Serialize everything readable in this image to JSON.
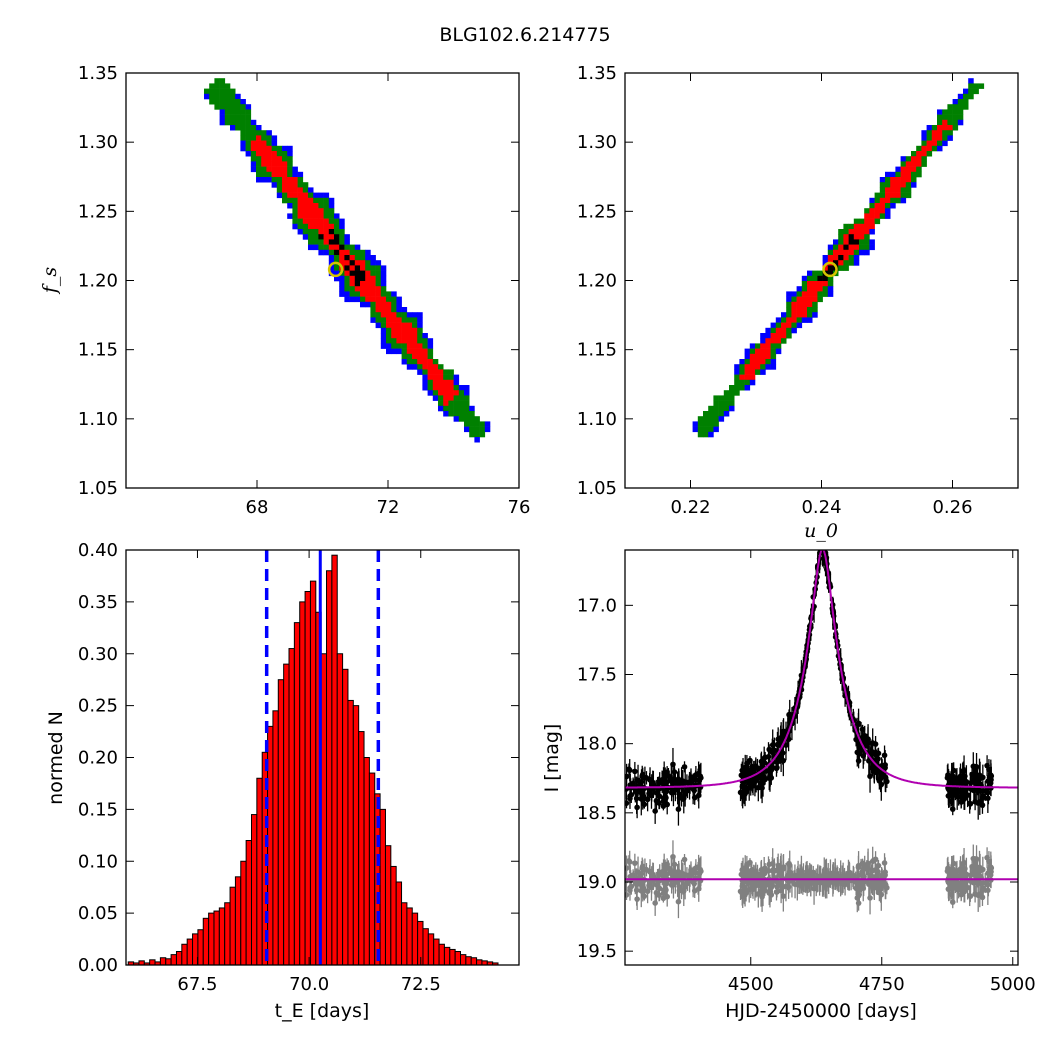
{
  "figure": {
    "title": "BLG102.6.214775"
  },
  "colors": {
    "outer": "#0000ff",
    "mid": "#008000",
    "inner": "#ff0000",
    "core": "#000000",
    "marker": "#d4c400",
    "model": "#b000b0",
    "resid": "#808080"
  },
  "chart_data": [
    {
      "type": "heatmap",
      "panel": "te-vs-fs",
      "xlabel": "",
      "ylabel": "f_s",
      "xlim": [
        64,
        76
      ],
      "ylim": [
        1.05,
        1.35
      ],
      "xticks": [
        "68",
        "72",
        "76"
      ],
      "yticks": [
        "1.05",
        "1.10",
        "1.15",
        "1.20",
        "1.25",
        "1.30",
        "1.35"
      ],
      "best_fit": [
        70.4,
        1.208
      ],
      "ridge": {
        "x0": 66.7,
        "y0": 1.34,
        "x1": 74.8,
        "y1": 1.09
      },
      "levels": [
        "outer",
        "mid",
        "inner",
        "core"
      ]
    },
    {
      "type": "heatmap",
      "panel": "u0-vs-fs",
      "xlabel": "u_0",
      "ylabel": "",
      "xlim": [
        0.21,
        0.27
      ],
      "ylim": [
        1.05,
        1.35
      ],
      "xticks": [
        "0.22",
        "0.24",
        "0.26"
      ],
      "yticks": [
        "1.05",
        "1.10",
        "1.15",
        "1.20",
        "1.25",
        "1.30",
        "1.35"
      ],
      "best_fit": [
        0.2413,
        1.208
      ],
      "ridge": {
        "x0": 0.2215,
        "y0": 1.09,
        "x1": 0.2635,
        "y1": 1.34
      },
      "levels": [
        "outer",
        "mid",
        "inner",
        "core"
      ]
    },
    {
      "type": "bar",
      "panel": "te-histogram",
      "xlabel": "t_E [days]",
      "ylabel": "normed N",
      "xlim": [
        65.9,
        74.7
      ],
      "ylim": [
        0,
        0.4
      ],
      "xticks": [
        "67.5",
        "70.0",
        "72.5"
      ],
      "yticks": [
        "0.00",
        "0.05",
        "0.10",
        "0.15",
        "0.20",
        "0.25",
        "0.30",
        "0.35",
        "0.40"
      ],
      "bin_start": 65.95,
      "bin_width": 0.12,
      "values": [
        0.003,
        0.002,
        0.004,
        0.002,
        0.005,
        0.003,
        0.007,
        0.006,
        0.01,
        0.013,
        0.02,
        0.025,
        0.03,
        0.034,
        0.045,
        0.05,
        0.052,
        0.055,
        0.06,
        0.075,
        0.085,
        0.1,
        0.12,
        0.145,
        0.18,
        0.205,
        0.23,
        0.245,
        0.275,
        0.29,
        0.305,
        0.33,
        0.35,
        0.36,
        0.37,
        0.34,
        0.3,
        0.38,
        0.395,
        0.3,
        0.285,
        0.255,
        0.25,
        0.225,
        0.2,
        0.185,
        0.165,
        0.15,
        0.115,
        0.095,
        0.08,
        0.06,
        0.055,
        0.05,
        0.042,
        0.035,
        0.03,
        0.025,
        0.02,
        0.017,
        0.015,
        0.013,
        0.01,
        0.008,
        0.007,
        0.005,
        0.004,
        0.003,
        0.002
      ],
      "median": 70.25,
      "lower": 69.05,
      "upper": 71.55
    },
    {
      "type": "scatter",
      "panel": "light-curve",
      "xlabel": "HJD-2450000 [days]",
      "ylabel": "I [mag]",
      "xlim": [
        4260,
        5010
      ],
      "ylim": [
        19.6,
        16.6
      ],
      "xticks": [
        "4500",
        "4750",
        "5000"
      ],
      "yticks": [
        "17.0",
        "17.5",
        "18.0",
        "18.5",
        "19.0",
        "19.5"
      ],
      "model": {
        "t0": 4637,
        "tE": 70.25,
        "u0": 0.2413,
        "base": 18.32,
        "fs": 1.208
      },
      "residual_offset": 18.98
    }
  ]
}
